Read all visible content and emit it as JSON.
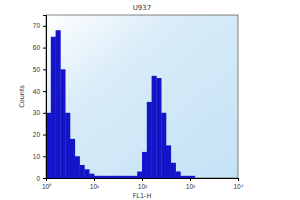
{
  "chart_data": {
    "type": "histogram",
    "title": "U937",
    "x_label": "FL1-H",
    "y_label": "Counts",
    "bins": [
      1,
      1.259,
      1.585,
      1.995,
      2.512,
      3.162,
      3.981,
      5.012,
      6.31,
      7.943,
      10,
      12.59,
      15.85,
      19.95,
      25.12,
      31.62,
      39.81,
      50.12,
      63.1,
      79.43,
      100,
      125.9,
      158.5,
      199.5,
      251.2,
      316.2,
      398.1,
      501.2,
      631,
      794.3,
      1000,
      1259,
      1585,
      1995,
      2512,
      3162,
      3981,
      5012,
      6310,
      7943,
      10000
    ],
    "counts": [
      30,
      65,
      68,
      50,
      30,
      18,
      10,
      6,
      4,
      2,
      1,
      1,
      1,
      1,
      1,
      1,
      1,
      1,
      1,
      3,
      12,
      35,
      47,
      46,
      30,
      15,
      7,
      3,
      1,
      1,
      1,
      0,
      0,
      0,
      0,
      0,
      0,
      0,
      0,
      0
    ],
    "color": "#1414c8",
    "log": "x",
    "xlim": [
      1,
      10000
    ],
    "xticks": [
      {
        "value": 1,
        "label": "10⁰"
      },
      {
        "value": 10,
        "label": "10¹"
      },
      {
        "value": 100,
        "label": "10²"
      },
      {
        "value": 1000,
        "label": "10³"
      },
      {
        "value": 10000,
        "label": "10⁴"
      }
    ],
    "ylim": [
      0,
      75
    ],
    "yticks": [
      0,
      10,
      20,
      30,
      40,
      50,
      60,
      70
    ]
  }
}
